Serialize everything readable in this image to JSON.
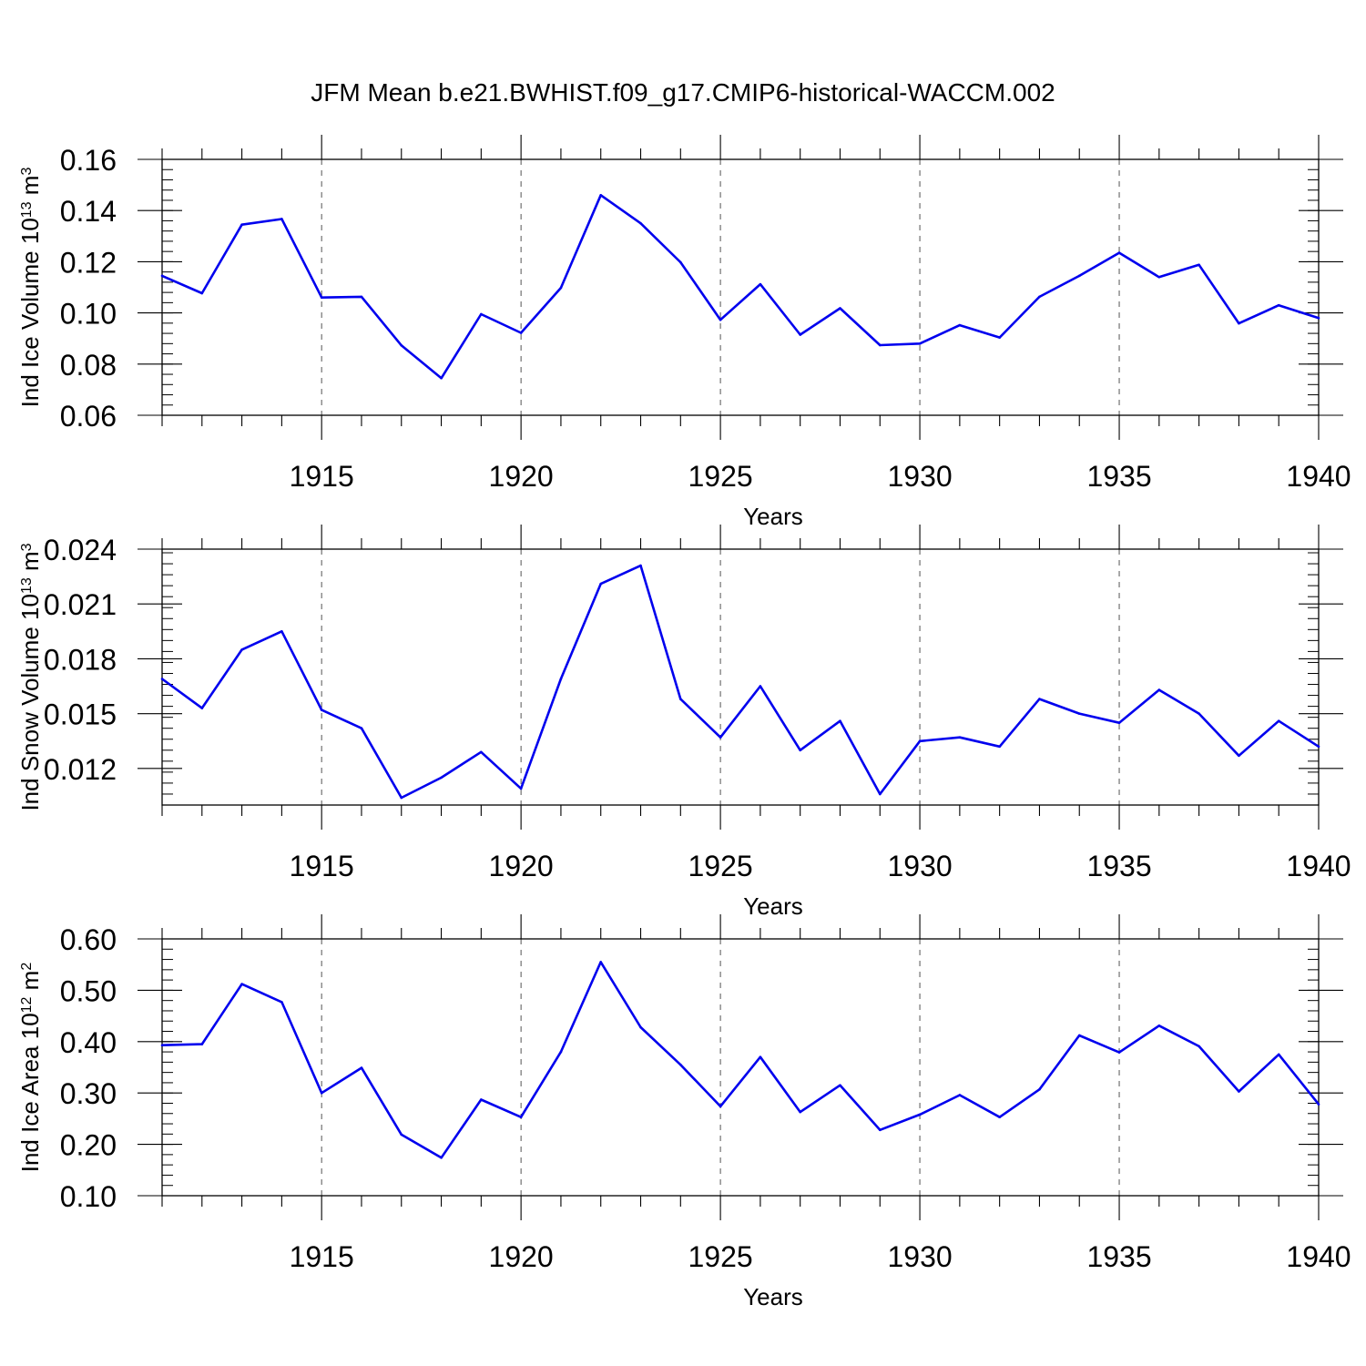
{
  "figure": {
    "title": "JFM Mean b.e21.BWHIST.f09_g17.CMIP6-historical-WACCM.002"
  },
  "colors": {
    "line": "#0000ee",
    "axis": "#000000",
    "grid": "#555555"
  },
  "chart_data": [
    {
      "type": "line",
      "panel": "ice-volume",
      "ylabel": "Ind Ice Volume 10",
      "ylabel_exponent": "13",
      "ylabel_unit": " m",
      "ylabel_unit_exponent": "3",
      "xlabel": "Years",
      "xlim": [
        1911,
        1940
      ],
      "ylim": [
        0.06,
        0.16
      ],
      "yticks": [
        0.06,
        0.08,
        0.1,
        0.12,
        0.14,
        0.16
      ],
      "ytick_labels": [
        "0.06",
        "0.08",
        "0.10",
        "0.12",
        "0.14",
        "0.16"
      ],
      "xticks": [
        1915,
        1920,
        1925,
        1930,
        1935,
        1940
      ],
      "xtick_labels": [
        "1915",
        "1920",
        "1925",
        "1930",
        "1935",
        "1940"
      ],
      "x": [
        1911,
        1912,
        1913,
        1914,
        1915,
        1916,
        1917,
        1918,
        1919,
        1920,
        1921,
        1922,
        1923,
        1924,
        1925,
        1926,
        1927,
        1928,
        1929,
        1930,
        1931,
        1932,
        1933,
        1934,
        1935,
        1936,
        1937,
        1938,
        1939,
        1940
      ],
      "values": [
        0.1145,
        0.1077,
        0.1345,
        0.1367,
        0.106,
        0.1063,
        0.0873,
        0.0745,
        0.0995,
        0.0922,
        0.1098,
        0.146,
        0.135,
        0.1198,
        0.0973,
        0.1112,
        0.0915,
        0.1018,
        0.0874,
        0.088,
        0.0952,
        0.0904,
        0.1063,
        0.1145,
        0.1235,
        0.114,
        0.1188,
        0.0959,
        0.103,
        0.098
      ]
    },
    {
      "type": "line",
      "panel": "snow-volume",
      "ylabel": "Ind Snow Volume 10",
      "ylabel_exponent": "13",
      "ylabel_unit": " m",
      "ylabel_unit_exponent": "3",
      "xlabel": "Years",
      "xlim": [
        1911,
        1940
      ],
      "ylim": [
        0.01,
        0.024
      ],
      "yticks": [
        0.012,
        0.015,
        0.018,
        0.021,
        0.024
      ],
      "ytick_labels": [
        "0.012",
        "0.015",
        "0.018",
        "0.021",
        "0.024"
      ],
      "xticks": [
        1915,
        1920,
        1925,
        1930,
        1935,
        1940
      ],
      "xtick_labels": [
        "1915",
        "1920",
        "1925",
        "1930",
        "1935",
        "1940"
      ],
      "x": [
        1911,
        1912,
        1913,
        1914,
        1915,
        1916,
        1917,
        1918,
        1919,
        1920,
        1921,
        1922,
        1923,
        1924,
        1925,
        1926,
        1927,
        1928,
        1929,
        1930,
        1931,
        1932,
        1933,
        1934,
        1935,
        1936,
        1937,
        1938,
        1939,
        1940
      ],
      "values": [
        0.0169,
        0.0153,
        0.0185,
        0.0195,
        0.0152,
        0.0142,
        0.0104,
        0.0115,
        0.0129,
        0.0109,
        0.0169,
        0.0221,
        0.0231,
        0.0158,
        0.0137,
        0.0165,
        0.013,
        0.0146,
        0.0106,
        0.0135,
        0.0137,
        0.0132,
        0.0158,
        0.015,
        0.0145,
        0.0163,
        0.015,
        0.0127,
        0.0146,
        0.0132
      ]
    },
    {
      "type": "line",
      "panel": "ice-area",
      "ylabel": "Ind Ice Area 10",
      "ylabel_exponent": "12",
      "ylabel_unit": " m",
      "ylabel_unit_exponent": "2",
      "xlabel": "Years",
      "xlim": [
        1911,
        1940
      ],
      "ylim": [
        0.1,
        0.6
      ],
      "yticks": [
        0.1,
        0.2,
        0.3,
        0.4,
        0.5,
        0.6
      ],
      "ytick_labels": [
        "0.10",
        "0.20",
        "0.30",
        "0.40",
        "0.50",
        "0.60"
      ],
      "xticks": [
        1915,
        1920,
        1925,
        1930,
        1935,
        1940
      ],
      "xtick_labels": [
        "1915",
        "1920",
        "1925",
        "1930",
        "1935",
        "1940"
      ],
      "x": [
        1911,
        1912,
        1913,
        1914,
        1915,
        1916,
        1917,
        1918,
        1919,
        1920,
        1921,
        1922,
        1923,
        1924,
        1925,
        1926,
        1927,
        1928,
        1929,
        1930,
        1931,
        1932,
        1933,
        1934,
        1935,
        1936,
        1937,
        1938,
        1939,
        1940
      ],
      "values": [
        0.393,
        0.395,
        0.512,
        0.477,
        0.3,
        0.349,
        0.219,
        0.174,
        0.287,
        0.253,
        0.38,
        0.555,
        0.428,
        0.355,
        0.274,
        0.37,
        0.263,
        0.315,
        0.228,
        0.258,
        0.296,
        0.253,
        0.307,
        0.412,
        0.379,
        0.431,
        0.391,
        0.303,
        0.375,
        0.278
      ]
    }
  ]
}
